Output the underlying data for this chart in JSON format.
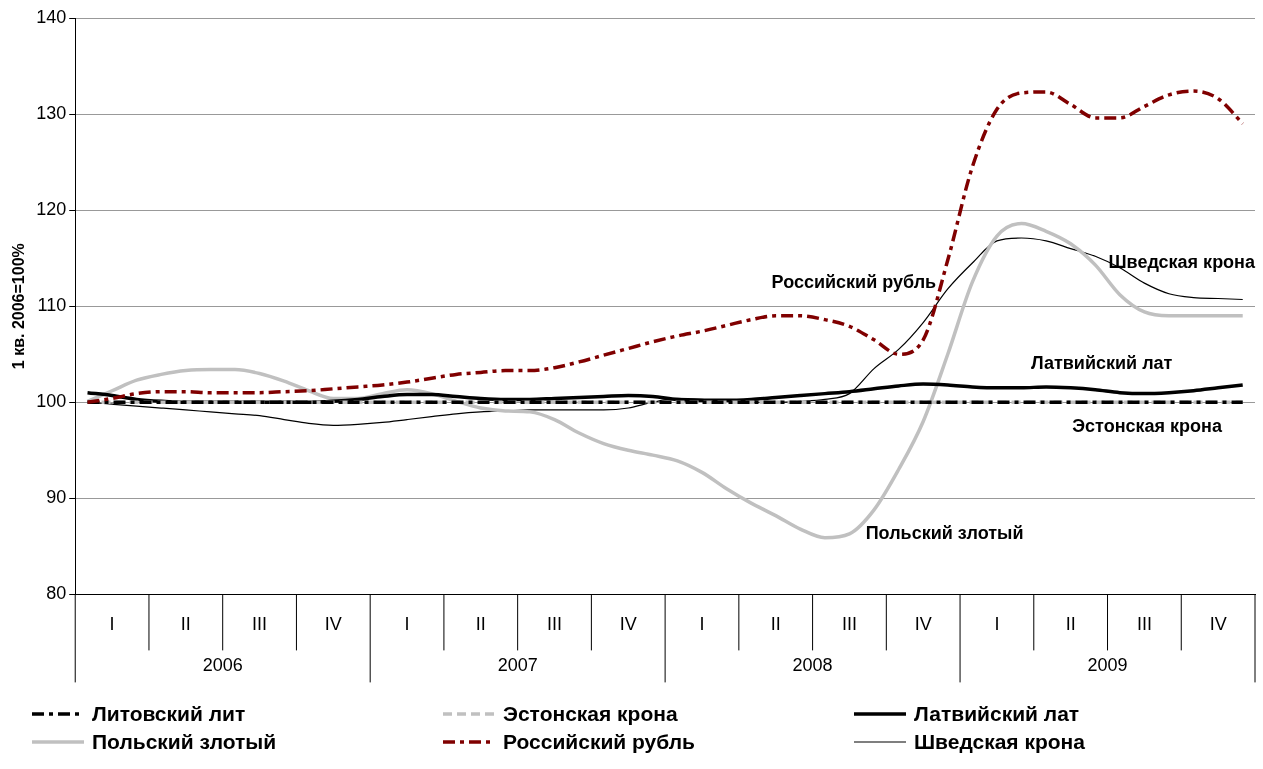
{
  "chart_data": {
    "type": "line",
    "ylabel": "1 кв. 2006=100%",
    "categories": [
      null,
      "I",
      null,
      null,
      "II",
      null,
      null,
      "III",
      null,
      null,
      "IV",
      null,
      null,
      "I",
      null,
      null,
      "II",
      null,
      null,
      "III",
      null,
      null,
      "IV",
      null,
      null,
      "I",
      null,
      null,
      "II",
      null,
      null,
      "III",
      null,
      null,
      "IV",
      null,
      null,
      "I",
      null,
      null,
      "II",
      null,
      null,
      "III",
      null,
      null,
      "IV",
      null
    ],
    "annotations": [
      "2006",
      "2007",
      "2008",
      "2009"
    ],
    "ylim": [
      80,
      140
    ],
    "yticks": [
      80,
      90,
      100,
      110,
      120,
      130,
      140
    ],
    "grid": "y",
    "legend": "bottom",
    "marker": "none",
    "series": [
      {
        "name": "Литовский лит",
        "color": "#000000",
        "line_style": "dashed",
        "values": [
          100,
          100,
          100,
          100,
          100,
          100,
          100,
          100,
          100,
          100,
          100,
          100,
          100,
          100,
          100,
          100,
          100,
          100,
          100,
          100,
          100,
          100,
          100,
          100,
          100,
          100,
          100,
          100,
          100,
          100,
          100,
          100,
          100,
          100,
          100,
          100,
          100,
          100,
          100,
          100,
          100,
          100,
          100,
          100,
          100,
          100,
          100,
          100
        ]
      },
      {
        "name": "Эстонская крона",
        "color": "#c0c0c0",
        "line_style": "dashed",
        "values": [
          100,
          100,
          100,
          100,
          100,
          100,
          100,
          100,
          100,
          100,
          100,
          100,
          100,
          100,
          100,
          100,
          100,
          100,
          100,
          100,
          100,
          100,
          100,
          100,
          100,
          100,
          100,
          100,
          100,
          100,
          100,
          100,
          100,
          100,
          100,
          100,
          100,
          100,
          100,
          100,
          100,
          100,
          100,
          100,
          100,
          100,
          100,
          100
        ]
      },
      {
        "name": "Латвийский лат",
        "color": "#000000",
        "line_style": "solid",
        "values": [
          101,
          100.7,
          100.3,
          100.1,
          100,
          100,
          100,
          100,
          100,
          100,
          100.1,
          100.3,
          100.6,
          100.8,
          100.8,
          100.6,
          100.4,
          100.3,
          100.3,
          100.4,
          100.5,
          100.6,
          100.7,
          100.6,
          100.3,
          100.2,
          100.2,
          100.3,
          100.5,
          100.7,
          100.9,
          101.1,
          101.4,
          101.7,
          101.9,
          101.8,
          101.6,
          101.5,
          101.5,
          101.6,
          101.5,
          101.3,
          101,
          100.9,
          101,
          101.2,
          101.5,
          101.8
        ]
      },
      {
        "name": "Польский злотый",
        "color": "#c0c0c0",
        "line_style": "solid",
        "values": [
          100.1,
          101.2,
          102.3,
          102.9,
          103.3,
          103.4,
          103.4,
          103,
          102.2,
          101.2,
          100.4,
          100.4,
          100.9,
          101.3,
          100.9,
          100.1,
          99.4,
          99.1,
          99,
          98.2,
          96.8,
          95.7,
          95,
          94.5,
          93.9,
          92.7,
          91,
          89.5,
          88.2,
          86.8,
          85.9,
          86.3,
          88.8,
          93,
          98,
          105,
          112.5,
          117.3,
          118.6,
          117.8,
          116.5,
          114.3,
          111.2,
          109.4,
          109,
          109,
          109,
          109
        ]
      },
      {
        "name": "Российский рубль",
        "color": "#800000",
        "line_style": "dashed",
        "values": [
          100,
          100.4,
          100.9,
          101.1,
          101.1,
          101,
          101,
          101,
          101.1,
          101.2,
          101.4,
          101.6,
          101.8,
          102.1,
          102.5,
          102.9,
          103.1,
          103.3,
          103.3,
          103.6,
          104.2,
          104.9,
          105.6,
          106.3,
          106.9,
          107.4,
          108,
          108.6,
          109,
          109,
          108.6,
          107.9,
          106.5,
          105,
          106.5,
          114.8,
          124.5,
          130.5,
          132.2,
          132.3,
          131,
          129.6,
          129.6,
          130.8,
          132,
          132.4,
          131.6,
          129
        ]
      },
      {
        "name": "Шведская крона",
        "color": "#000000",
        "line_style": "solid",
        "values": [
          100,
          99.8,
          99.6,
          99.4,
          99.2,
          99,
          98.8,
          98.6,
          98.2,
          97.8,
          97.6,
          97.7,
          97.9,
          98.2,
          98.5,
          98.8,
          99,
          99.1,
          99.2,
          99.2,
          99.2,
          99.2,
          99.4,
          100,
          100.4,
          100.3,
          100.1,
          100,
          100,
          100.1,
          100.3,
          100.9,
          103.5,
          105.5,
          108.3,
          111.8,
          114.5,
          116.8,
          117.1,
          116.8,
          116,
          115.2,
          114,
          112.4,
          111.3,
          110.9,
          110.8,
          110.7
        ]
      }
    ]
  }
}
